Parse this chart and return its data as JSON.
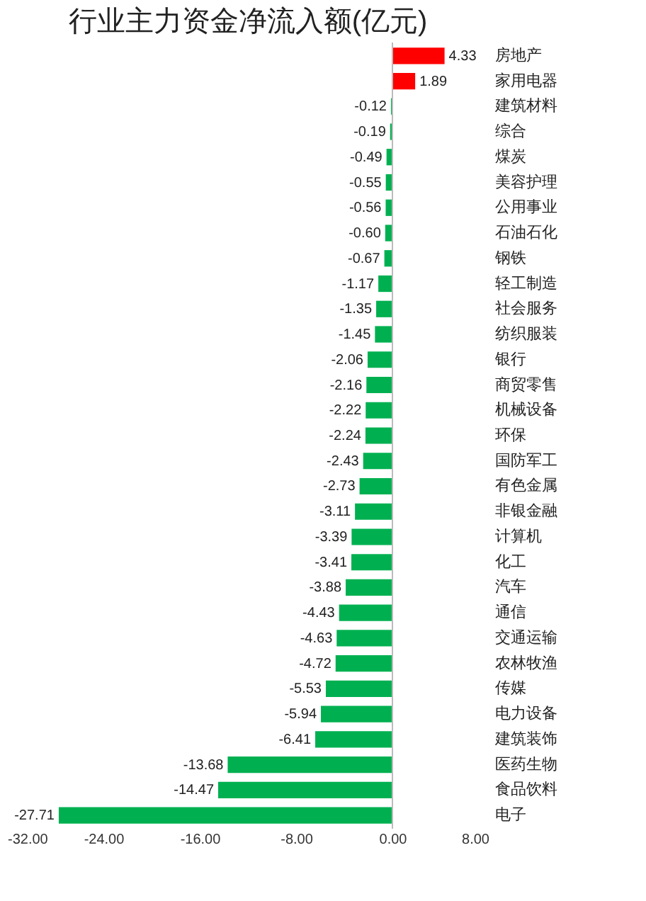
{
  "chart_data": {
    "type": "bar",
    "orientation": "horizontal",
    "title": "行业主力资金净流入额(亿元)",
    "categories": [
      "房地产",
      "家用电器",
      "建筑材料",
      "综合",
      "煤炭",
      "美容护理",
      "公用事业",
      "石油石化",
      "钢铁",
      "轻工制造",
      "社会服务",
      "纺织服装",
      "银行",
      "商贸零售",
      "机械设备",
      "环保",
      "国防军工",
      "有色金属",
      "非银金融",
      "计算机",
      "化工",
      "汽车",
      "通信",
      "交通运输",
      "农林牧渔",
      "传媒",
      "电力设备",
      "建筑装饰",
      "医药生物",
      "食品饮料",
      "电子"
    ],
    "values": [
      4.33,
      1.89,
      -0.12,
      -0.19,
      -0.49,
      -0.55,
      -0.56,
      -0.6,
      -0.67,
      -1.17,
      -1.35,
      -1.45,
      -2.06,
      -2.16,
      -2.22,
      -2.24,
      -2.43,
      -2.73,
      -3.11,
      -3.39,
      -3.41,
      -3.88,
      -4.43,
      -4.63,
      -4.72,
      -5.53,
      -5.94,
      -6.41,
      -13.68,
      -14.47,
      -27.71
    ],
    "colors": [
      "#ff0000",
      "#ff0000",
      "#00b050",
      "#00b050",
      "#00b050",
      "#00b050",
      "#00b050",
      "#00b050",
      "#00b050",
      "#00b050",
      "#00b050",
      "#00b050",
      "#00b050",
      "#00b050",
      "#00b050",
      "#00b050",
      "#00b050",
      "#00b050",
      "#00b050",
      "#00b050",
      "#00b050",
      "#00b050",
      "#00b050",
      "#00b050",
      "#00b050",
      "#00b050",
      "#00b050",
      "#00b050",
      "#00b050",
      "#00b050",
      "#00b050"
    ],
    "xlim": [
      -32,
      8
    ],
    "xticks": [
      {
        "value": -32,
        "label": "-32.00"
      },
      {
        "value": -24,
        "label": "-24.00"
      },
      {
        "value": -16,
        "label": "-16.00"
      },
      {
        "value": -8,
        "label": "-8.00"
      },
      {
        "value": 0,
        "label": "0.00"
      },
      {
        "value": 8,
        "label": "8.00"
      }
    ],
    "value_labels": [
      "4.33",
      "1.89",
      "-0.12",
      "-0.19",
      "-0.49",
      "-0.55",
      "-0.56",
      "-0.60",
      "-0.67",
      "-1.17",
      "-1.35",
      "-1.45",
      "-2.06",
      "-2.16",
      "-2.22",
      "-2.24",
      "-2.43",
      "-2.73",
      "-3.11",
      "-3.39",
      "-3.41",
      "-3.88",
      "-4.43",
      "-4.63",
      "-4.72",
      "-5.53",
      "-5.94",
      "-6.41",
      "-13.68",
      "-14.47",
      "-27.71"
    ]
  }
}
